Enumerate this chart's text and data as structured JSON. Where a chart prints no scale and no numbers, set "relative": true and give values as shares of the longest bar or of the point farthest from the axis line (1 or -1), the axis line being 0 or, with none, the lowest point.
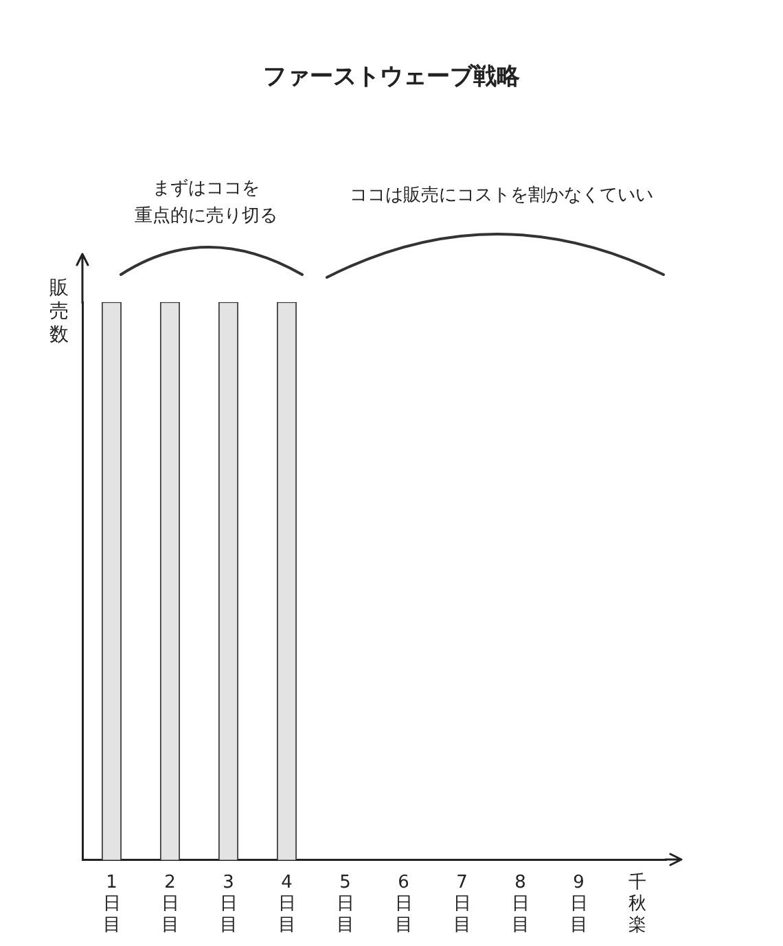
{
  "chart_data": {
    "type": "bar",
    "title": "ファーストウェーブ戦略",
    "ylabel": "販売数",
    "categories": [
      "1日目",
      "2日目",
      "3日目",
      "4日目",
      "5日目",
      "6日目",
      "7日目",
      "8日目",
      "9日目",
      "千秋楽"
    ],
    "values": [
      1,
      1,
      1,
      1,
      0,
      0,
      0,
      0,
      0,
      0
    ],
    "relative": true,
    "color": "#e3e3e3",
    "grid": false,
    "legend": false,
    "annotations": [
      "まずはココを",
      "重点的に売り切る",
      "ココは販売にコストを割かなくていい"
    ]
  }
}
